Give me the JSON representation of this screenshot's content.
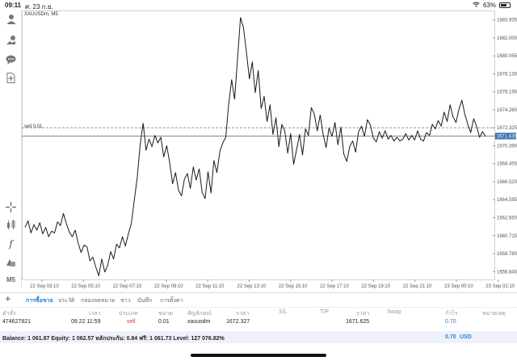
{
  "status_bar": {
    "time": "09:11",
    "date": "ศ. 23 ก.ย.",
    "battery": "63%"
  },
  "chart": {
    "symbol": "XAUUSDm, M5",
    "sell_line_label": "sell 0.01",
    "current_price_tag": "1671.435"
  },
  "toolbar_icons": [
    "user-icon",
    "deposit-icon",
    "chat-icon",
    "add-document-icon",
    "crosshair-icon",
    "indicators-icon",
    "function-icon",
    "objects-icon",
    "timeframe-icon"
  ],
  "timeframe_label": "M5",
  "chart_data": {
    "type": "line",
    "y_ticks": [
      "1683.935",
      "1682.000",
      "1680.065",
      "1678.130",
      "1676.195",
      "1674.260",
      "1672.325",
      "1670.390",
      "1668.455",
      "1666.520",
      "1664.585",
      "1662.650",
      "1660.715",
      "1658.780",
      "1656.845"
    ],
    "x_ticks": [
      "22 Sep 03:10",
      "22 Sep 05:10",
      "22 Sep 07:10",
      "22 Sep 09:10",
      "22 Sep 11:10",
      "22 Sep 13:10",
      "22 Sep 15:10",
      "22 Sep 17:10",
      "22 Sep 19:10",
      "22 Sep 21:10",
      "23 Sep 00:10",
      "23 Sep 02:10"
    ],
    "ylim": [
      1656.0,
      1684.6
    ],
    "values": [
      1661.6,
      1662.3,
      1661.0,
      1661.9,
      1661.3,
      1662.1,
      1660.9,
      1661.6,
      1660.6,
      1661.2,
      1661.0,
      1662.2,
      1661.8,
      1663.1,
      1662.0,
      1661.1,
      1660.6,
      1661.3,
      1659.9,
      1658.9,
      1659.7,
      1659.5,
      1658.0,
      1658.4,
      1657.3,
      1656.4,
      1658.2,
      1656.8,
      1657.5,
      1659.0,
      1658.2,
      1659.8,
      1659.4,
      1660.6,
      1659.6,
      1660.9,
      1662.0,
      1664.5,
      1666.9,
      1670.5,
      1672.8,
      1669.9,
      1671.1,
      1670.3,
      1671.5,
      1670.7,
      1671.3,
      1669.2,
      1670.4,
      1668.6,
      1666.3,
      1667.5,
      1665.6,
      1665.0,
      1666.8,
      1667.4,
      1665.8,
      1668.1,
      1666.7,
      1667.9,
      1665.4,
      1664.7,
      1667.6,
      1665.3,
      1668.8,
      1667.5,
      1669.8,
      1670.7,
      1671.3,
      1674.9,
      1677.5,
      1675.4,
      1679.8,
      1684.2,
      1683.1,
      1680.5,
      1677.6,
      1679.4,
      1676.1,
      1678.5,
      1674.4,
      1675.7,
      1673.0,
      1674.8,
      1671.6,
      1673.4,
      1670.3,
      1672.7,
      1672.0,
      1669.6,
      1671.7,
      1668.4,
      1670.0,
      1671.6,
      1669.4,
      1672.2,
      1671.5,
      1674.5,
      1673.8,
      1672.0,
      1673.7,
      1671.6,
      1670.2,
      1672.3,
      1671.4,
      1672.9,
      1670.5,
      1672.4,
      1669.5,
      1668.7,
      1670.3,
      1670.9,
      1669.7,
      1671.9,
      1672.5,
      1671.4,
      1673.2,
      1672.6,
      1671.2,
      1670.8,
      1671.9,
      1671.2,
      1672.0,
      1671.1,
      1671.5,
      1670.9,
      1671.3,
      1670.9,
      1671.1,
      1671.7,
      1671.0,
      1671.5,
      1671.0,
      1672.0,
      1671.1,
      1670.9,
      1671.8,
      1671.5,
      1672.7,
      1672.2,
      1673.1,
      1672.5,
      1674.0,
      1673.0,
      1674.8,
      1673.5,
      1672.9,
      1674.3,
      1675.3,
      1673.8,
      1672.7,
      1671.8,
      1673.3,
      1672.5,
      1671.3,
      1671.9,
      1671.4
    ]
  },
  "tabs": [
    "การซื้อขาย",
    "ประวัติ",
    "กล่องจดหมาย",
    "ข่าว",
    "บันทึก",
    "การตั้งค่า"
  ],
  "columns": [
    "คำสั่ง",
    "เวลา",
    "ประเภท",
    "ขนาด",
    "สัญลักษณ์",
    "ราคา",
    "S/L",
    "T/P",
    "ราคา",
    "Swap",
    "กำไร",
    "หมายเหตุ"
  ],
  "trade": {
    "ticket": "474627821",
    "time": "09.22 11:59",
    "type": "sell",
    "volume": "0.01",
    "symbol": "xauusdm",
    "open_price": "1672.327",
    "current_price": "1671.625",
    "profit": "0.70"
  },
  "summary": {
    "text": "Balance: 1 061.87 Equity: 1 062.57 หลักประกัน: 0.84 ฟรี: 1 061.73 Level: 127 076.82%",
    "profit": "0.70",
    "currency": "USD"
  },
  "colors": {
    "accent": "#2a7fd6",
    "sell": "#d33333",
    "line": "#1a1a1a"
  }
}
